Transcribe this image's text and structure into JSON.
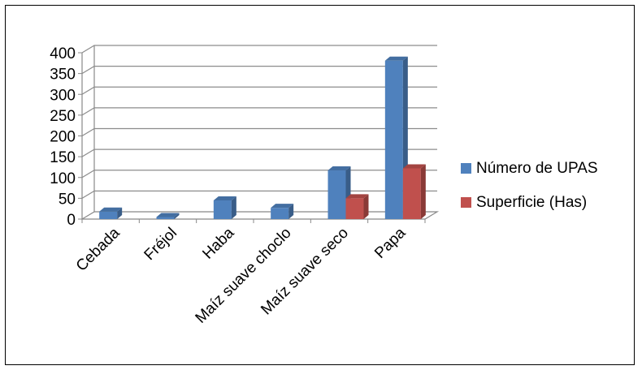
{
  "chart_data": {
    "type": "bar",
    "style": "3d-clustered-column",
    "categories": [
      "Cebada",
      "Fréjol",
      "Haba",
      "Maíz suave choclo",
      "Maíz suave seco",
      "Papa"
    ],
    "series": [
      {
        "name": "Número de UPAS",
        "values": [
          18,
          5,
          45,
          27,
          117,
          381
        ],
        "color": "#4f81bd"
      },
      {
        "name": "Superficie (Has)",
        "values": [
          0,
          0,
          0,
          0,
          50,
          122
        ],
        "color": "#c0504d"
      }
    ],
    "y_ticks": [
      "0",
      "50",
      "100",
      "150",
      "200",
      "250",
      "300",
      "350",
      "400"
    ],
    "ylim": [
      0,
      400
    ],
    "grid": true,
    "legend_position": "right"
  }
}
